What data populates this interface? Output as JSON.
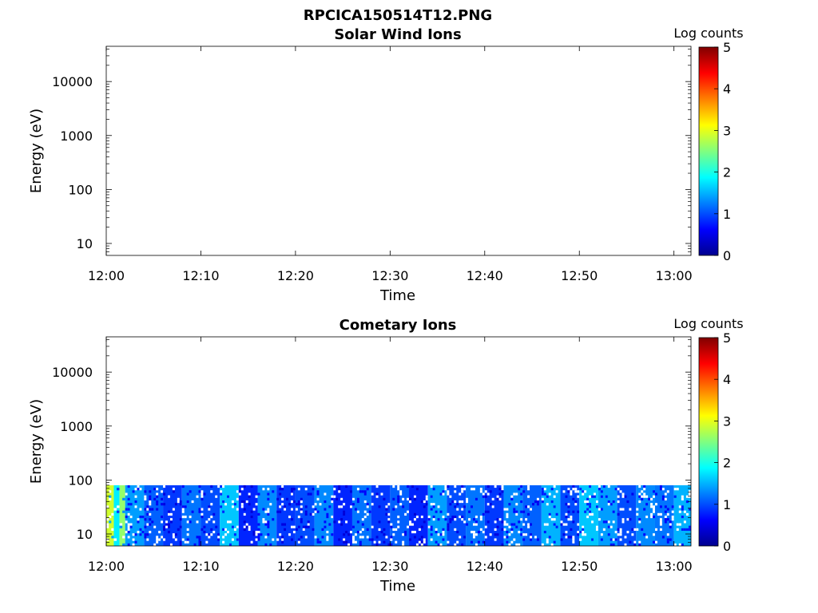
{
  "figure": {
    "title": "RPCICA150514T12.PNG"
  },
  "chart_data": [
    {
      "type": "heatmap",
      "title": "Solar Wind Ions",
      "xlabel": "Time",
      "ylabel": "Energy (eV)",
      "x_ticks": [
        "12:00",
        "12:10",
        "12:20",
        "12:30",
        "12:40",
        "12:50",
        "13:00"
      ],
      "xlim_minutes": [
        0,
        61.8
      ],
      "y_scale": "log",
      "ylim": [
        6,
        45000
      ],
      "y_ticks": [
        {
          "value": 10,
          "label": "10"
        },
        {
          "value": 100,
          "label": "100"
        },
        {
          "value": 1000,
          "label": "1000"
        },
        {
          "value": 10000,
          "label": "10000"
        }
      ],
      "colorbar": {
        "label": "Log counts",
        "range": [
          0,
          5
        ],
        "ticks": [
          "0",
          "1",
          "2",
          "3",
          "4",
          "5"
        ],
        "colormap": "jet"
      },
      "data": "empty"
    },
    {
      "type": "heatmap",
      "title": "Cometary Ions",
      "xlabel": "Time",
      "ylabel": "Energy (eV)",
      "x_ticks": [
        "12:00",
        "12:10",
        "12:20",
        "12:30",
        "12:40",
        "12:50",
        "13:00"
      ],
      "xlim_minutes": [
        0,
        61.8
      ],
      "y_scale": "log",
      "ylim": [
        6,
        45000
      ],
      "y_ticks": [
        {
          "value": 10,
          "label": "10"
        },
        {
          "value": 100,
          "label": "100"
        },
        {
          "value": 1000,
          "label": "1000"
        },
        {
          "value": 10000,
          "label": "10000"
        }
      ],
      "colorbar": {
        "label": "Log counts",
        "range": [
          0,
          5
        ],
        "ticks": [
          "0",
          "1",
          "2",
          "3",
          "4",
          "5"
        ],
        "colormap": "jet"
      },
      "energy_range_with_counts_eV": [
        6,
        80
      ],
      "columns": [
        {
          "t_start_min": 0.0,
          "t_end_min": 0.8,
          "log_counts": 2.9
        },
        {
          "t_start_min": 0.8,
          "t_end_min": 1.4,
          "log_counts": 1.8
        },
        {
          "t_start_min": 1.4,
          "t_end_min": 2.0,
          "log_counts": 2.6
        },
        {
          "t_start_min": 2.0,
          "t_end_min": 4.0,
          "log_counts": 1.4
        },
        {
          "t_start_min": 4.0,
          "t_end_min": 6.0,
          "log_counts": 1.1
        },
        {
          "t_start_min": 6.0,
          "t_end_min": 8.0,
          "log_counts": 0.9
        },
        {
          "t_start_min": 8.0,
          "t_end_min": 10.0,
          "log_counts": 1.2
        },
        {
          "t_start_min": 10.0,
          "t_end_min": 12.0,
          "log_counts": 1.0
        },
        {
          "t_start_min": 12.0,
          "t_end_min": 14.0,
          "log_counts": 1.6
        },
        {
          "t_start_min": 14.0,
          "t_end_min": 16.0,
          "log_counts": 0.8
        },
        {
          "t_start_min": 16.0,
          "t_end_min": 18.0,
          "log_counts": 1.3
        },
        {
          "t_start_min": 18.0,
          "t_end_min": 20.0,
          "log_counts": 0.9
        },
        {
          "t_start_min": 20.0,
          "t_end_min": 22.0,
          "log_counts": 1.0
        },
        {
          "t_start_min": 22.0,
          "t_end_min": 24.0,
          "log_counts": 1.3
        },
        {
          "t_start_min": 24.0,
          "t_end_min": 26.0,
          "log_counts": 0.8
        },
        {
          "t_start_min": 26.0,
          "t_end_min": 28.0,
          "log_counts": 1.2
        },
        {
          "t_start_min": 28.0,
          "t_end_min": 30.0,
          "log_counts": 0.9
        },
        {
          "t_start_min": 30.0,
          "t_end_min": 32.0,
          "log_counts": 1.1
        },
        {
          "t_start_min": 32.0,
          "t_end_min": 34.0,
          "log_counts": 0.8
        },
        {
          "t_start_min": 34.0,
          "t_end_min": 36.0,
          "log_counts": 1.4
        },
        {
          "t_start_min": 36.0,
          "t_end_min": 38.0,
          "log_counts": 1.0
        },
        {
          "t_start_min": 38.0,
          "t_end_min": 40.0,
          "log_counts": 1.2
        },
        {
          "t_start_min": 40.0,
          "t_end_min": 42.0,
          "log_counts": 0.9
        },
        {
          "t_start_min": 42.0,
          "t_end_min": 44.0,
          "log_counts": 1.3
        },
        {
          "t_start_min": 44.0,
          "t_end_min": 46.0,
          "log_counts": 1.1
        },
        {
          "t_start_min": 46.0,
          "t_end_min": 48.0,
          "log_counts": 1.5
        },
        {
          "t_start_min": 48.0,
          "t_end_min": 50.0,
          "log_counts": 1.0
        },
        {
          "t_start_min": 50.0,
          "t_end_min": 52.0,
          "log_counts": 1.6
        },
        {
          "t_start_min": 52.0,
          "t_end_min": 54.0,
          "log_counts": 1.4
        },
        {
          "t_start_min": 54.0,
          "t_end_min": 56.0,
          "log_counts": 1.0
        },
        {
          "t_start_min": 56.0,
          "t_end_min": 58.0,
          "log_counts": 1.3
        },
        {
          "t_start_min": 58.0,
          "t_end_min": 60.0,
          "log_counts": 1.2
        },
        {
          "t_start_min": 60.0,
          "t_end_min": 61.8,
          "log_counts": 1.5
        }
      ]
    }
  ]
}
